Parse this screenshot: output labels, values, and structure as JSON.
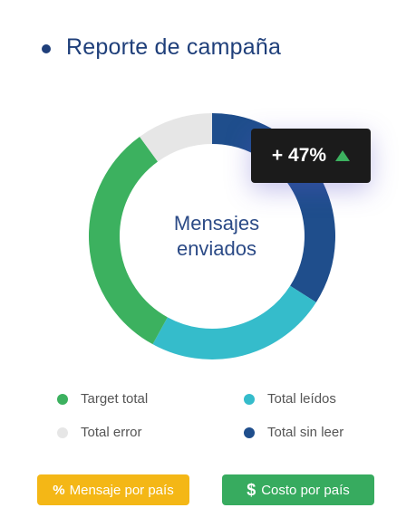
{
  "header": {
    "title": "Reporte de campaña"
  },
  "center_label": {
    "line1": "Mensajes",
    "line2": "enviados"
  },
  "tooltip": {
    "value": "+ 47%",
    "trend": "up"
  },
  "chart_data": {
    "type": "pie",
    "donut": true,
    "categories": [
      "Total sin leer",
      "Total leídos",
      "Target total",
      "Total error"
    ],
    "values": [
      34,
      24,
      32,
      10
    ],
    "colors": [
      "#1f4e8c",
      "#35bccb",
      "#3cb15f",
      "#e6e6e6"
    ],
    "start_angle_deg": 0,
    "direction": "clockwise"
  },
  "legend": [
    {
      "label": "Target total",
      "color": "#3cb15f"
    },
    {
      "label": "Total leídos",
      "color": "#35bccb"
    },
    {
      "label": "Total error",
      "color": "#e6e6e6"
    },
    {
      "label": "Total sin leer",
      "color": "#1f4e8c"
    }
  ],
  "buttons": {
    "percent": {
      "icon": "%",
      "label": "Mensaje por país",
      "color": "#f4b716"
    },
    "cost": {
      "icon": "$",
      "label": "Costo por país",
      "color": "#37ab5f"
    }
  }
}
